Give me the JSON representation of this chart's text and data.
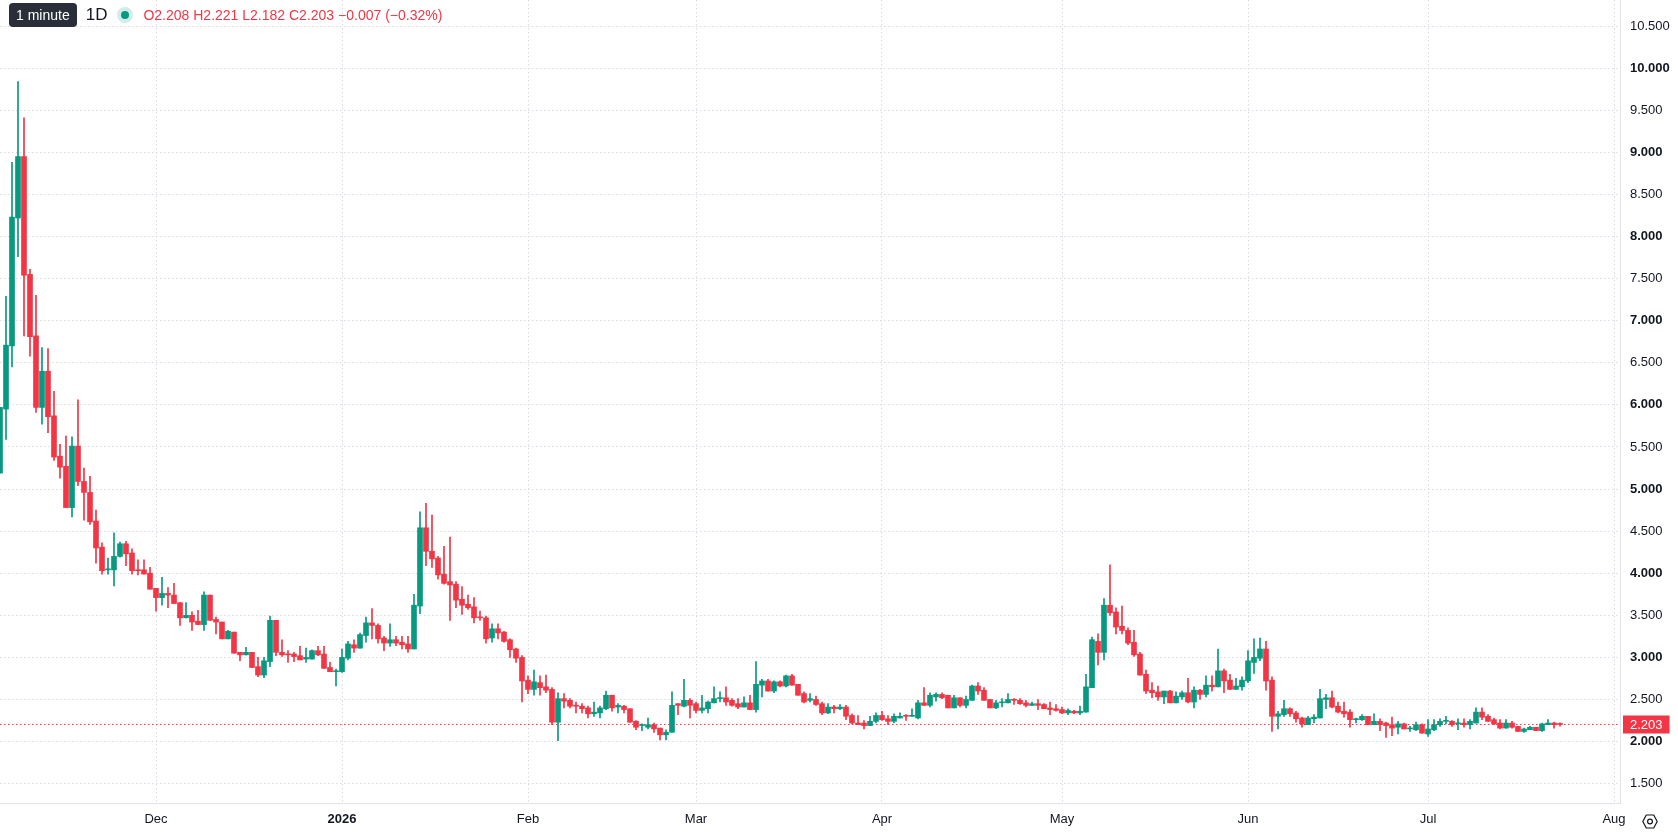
{
  "chart_data": {
    "type": "candlestick",
    "title": "1D",
    "subtitle": "O2.208 H2.221 L2.182 C2.203 −0.007 (−0.32%)",
    "annotations": [
      "1 minute"
    ],
    "x": [
      "2025-11-05",
      "2025-11-06",
      "2025-11-07",
      "2025-11-08",
      "2025-11-09",
      "2025-11-10",
      "2025-11-11",
      "2025-11-12",
      "2025-11-13",
      "2025-11-14",
      "2025-11-15",
      "2025-11-16",
      "2025-11-17",
      "2025-11-18",
      "2025-11-19",
      "2025-11-20",
      "2025-11-21",
      "2025-11-22",
      "2025-11-23",
      "2025-11-24",
      "2025-11-25",
      "2025-11-26",
      "2025-11-27",
      "2025-11-28",
      "2025-11-29",
      "2025-11-30",
      "2025-12-01",
      "2025-12-02",
      "2025-12-03",
      "2025-12-04",
      "2025-12-05",
      "2025-12-06",
      "2025-12-07",
      "2025-12-08",
      "2025-12-09",
      "2025-12-10",
      "2025-12-11",
      "2025-12-12",
      "2025-12-13",
      "2025-12-14",
      "2025-12-15",
      "2025-12-16",
      "2025-12-17",
      "2025-12-18",
      "2025-12-19",
      "2025-12-20",
      "2025-12-21",
      "2025-12-22",
      "2025-12-23",
      "2025-12-24",
      "2025-12-25",
      "2025-12-26",
      "2025-12-27",
      "2025-12-28",
      "2025-12-29",
      "2025-12-30",
      "2025-12-31",
      "2026-01-01",
      "2026-01-02",
      "2026-01-03",
      "2026-01-04",
      "2026-01-05",
      "2026-01-06",
      "2026-01-07",
      "2026-01-08",
      "2026-01-09",
      "2026-01-10",
      "2026-01-11",
      "2026-01-12",
      "2026-01-13",
      "2026-01-14",
      "2026-01-15",
      "2026-01-16",
      "2026-01-17",
      "2026-01-18",
      "2026-01-19",
      "2026-01-20",
      "2026-01-21",
      "2026-01-22",
      "2026-01-23",
      "2026-01-24",
      "2026-01-25",
      "2026-01-26",
      "2026-01-27",
      "2026-01-28",
      "2026-01-29",
      "2026-01-30",
      "2026-01-31",
      "2026-02-01",
      "2026-02-02",
      "2026-02-03",
      "2026-02-04",
      "2026-02-05",
      "2026-02-06",
      "2026-02-07",
      "2026-02-08",
      "2026-02-09",
      "2026-02-10",
      "2026-02-11",
      "2026-02-12",
      "2026-02-13",
      "2026-02-14",
      "2026-02-15",
      "2026-02-16",
      "2026-02-17",
      "2026-02-18",
      "2026-02-19",
      "2026-02-20",
      "2026-02-21",
      "2026-02-22",
      "2026-02-23",
      "2026-02-24",
      "2026-02-25",
      "2026-02-26",
      "2026-02-27",
      "2026-02-28",
      "2026-03-01",
      "2026-03-02",
      "2026-03-03",
      "2026-03-04",
      "2026-03-05",
      "2026-03-06",
      "2026-03-07",
      "2026-03-08",
      "2026-03-09",
      "2026-03-10",
      "2026-03-11",
      "2026-03-12",
      "2026-03-13",
      "2026-03-14",
      "2026-03-15",
      "2026-03-16",
      "2026-03-17",
      "2026-03-18",
      "2026-03-19",
      "2026-03-20",
      "2026-03-21",
      "2026-03-22",
      "2026-03-23",
      "2026-03-24",
      "2026-03-25",
      "2026-03-26",
      "2026-03-27",
      "2026-03-28",
      "2026-03-29",
      "2026-03-30",
      "2026-03-31",
      "2026-04-01",
      "2026-04-02",
      "2026-04-03",
      "2026-04-04",
      "2026-04-05",
      "2026-04-06",
      "2026-04-07",
      "2026-04-08",
      "2026-04-09",
      "2026-04-10",
      "2026-04-11",
      "2026-04-12",
      "2026-04-13",
      "2026-04-14",
      "2026-04-15",
      "2026-04-16",
      "2026-04-17",
      "2026-04-18",
      "2026-04-19",
      "2026-04-20",
      "2026-04-21",
      "2026-04-22",
      "2026-04-23",
      "2026-04-24",
      "2026-04-25",
      "2026-04-26",
      "2026-04-27",
      "2026-04-28",
      "2026-04-29",
      "2026-04-30",
      "2026-05-01",
      "2026-05-02",
      "2026-05-03",
      "2026-05-04",
      "2026-05-05",
      "2026-05-06",
      "2026-05-07",
      "2026-05-08",
      "2026-05-09",
      "2026-05-10",
      "2026-05-11",
      "2026-05-12",
      "2026-05-13",
      "2026-05-14",
      "2026-05-15",
      "2026-05-16",
      "2026-05-17",
      "2026-05-18",
      "2026-05-19",
      "2026-05-20",
      "2026-05-21",
      "2026-05-22",
      "2026-05-23",
      "2026-05-24",
      "2026-05-25",
      "2026-05-26",
      "2026-05-27",
      "2026-05-28",
      "2026-05-29",
      "2026-05-30",
      "2026-05-31",
      "2026-06-01",
      "2026-06-02",
      "2026-06-03",
      "2026-06-04",
      "2026-06-05",
      "2026-06-06",
      "2026-06-07",
      "2026-06-08",
      "2026-06-09",
      "2026-06-10",
      "2026-06-11",
      "2026-06-12",
      "2026-06-13",
      "2026-06-14",
      "2026-06-15",
      "2026-06-16",
      "2026-06-17",
      "2026-06-18",
      "2026-06-19",
      "2026-06-20",
      "2026-06-21",
      "2026-06-22",
      "2026-06-23",
      "2026-06-24",
      "2026-06-25",
      "2026-06-26",
      "2026-06-27",
      "2026-06-28",
      "2026-06-29",
      "2026-06-30",
      "2026-07-01",
      "2026-07-02",
      "2026-07-03",
      "2026-07-04",
      "2026-07-05",
      "2026-07-06",
      "2026-07-07",
      "2026-07-08",
      "2026-07-09",
      "2026-07-10",
      "2026-07-11",
      "2026-07-12",
      "2026-07-13",
      "2026-07-14",
      "2026-07-15",
      "2026-07-16",
      "2026-07-17",
      "2026-07-18",
      "2026-07-19",
      "2026-07-20",
      "2026-07-21",
      "2026-07-22",
      "2026-07-23"
    ],
    "ohlc": [
      [
        5.19,
        5.97,
        5.19,
        5.97
      ],
      [
        5.95,
        7.29,
        5.59,
        6.71
      ],
      [
        6.7,
        8.88,
        6.45,
        8.23
      ],
      [
        8.22,
        9.84,
        7.76,
        8.95
      ],
      [
        8.95,
        9.41,
        6.82,
        7.54
      ],
      [
        7.55,
        7.61,
        6.58,
        6.81
      ],
      [
        6.82,
        7.3,
        5.91,
        5.97
      ],
      [
        5.97,
        6.68,
        5.77,
        6.4
      ],
      [
        6.4,
        6.67,
        5.67,
        5.86
      ],
      [
        5.87,
        6.16,
        5.34,
        5.38
      ],
      [
        5.39,
        5.53,
        5.13,
        5.26
      ],
      [
        5.27,
        5.63,
        4.78,
        4.78
      ],
      [
        4.78,
        5.62,
        4.67,
        5.51
      ],
      [
        5.51,
        6.06,
        5.04,
        5.09
      ],
      [
        5.09,
        5.25,
        4.63,
        4.96
      ],
      [
        4.96,
        5.15,
        4.58,
        4.61
      ],
      [
        4.62,
        4.75,
        4.12,
        4.3
      ],
      [
        4.31,
        4.36,
        3.99,
        4.03
      ],
      [
        4.04,
        4.18,
        3.99,
        4.05
      ],
      [
        4.04,
        4.48,
        3.85,
        4.2
      ],
      [
        4.2,
        4.37,
        4.19,
        4.35
      ],
      [
        4.35,
        4.38,
        4.09,
        4.23
      ],
      [
        4.24,
        4.29,
        3.99,
        4.03
      ],
      [
        4.04,
        4.16,
        3.98,
        4.03
      ],
      [
        4.04,
        4.16,
        3.99,
        3.99
      ],
      [
        4.0,
        4.07,
        3.81,
        3.81
      ],
      [
        3.82,
        3.82,
        3.55,
        3.71
      ],
      [
        3.71,
        3.95,
        3.62,
        3.76
      ],
      [
        3.76,
        3.83,
        3.59,
        3.74
      ],
      [
        3.74,
        3.88,
        3.64,
        3.64
      ],
      [
        3.65,
        3.65,
        3.38,
        3.47
      ],
      [
        3.47,
        3.65,
        3.47,
        3.5
      ],
      [
        3.5,
        3.54,
        3.32,
        3.42
      ],
      [
        3.43,
        3.56,
        3.39,
        3.39
      ],
      [
        3.39,
        3.78,
        3.32,
        3.74
      ],
      [
        3.74,
        3.74,
        3.44,
        3.44
      ],
      [
        3.45,
        3.48,
        3.28,
        3.42
      ],
      [
        3.42,
        3.42,
        3.22,
        3.22
      ],
      [
        3.22,
        3.32,
        3.22,
        3.31
      ],
      [
        3.3,
        3.3,
        3.05,
        3.05
      ],
      [
        3.06,
        3.06,
        2.96,
        3.03
      ],
      [
        3.03,
        3.12,
        3.03,
        3.06
      ],
      [
        3.06,
        3.06,
        2.88,
        2.88
      ],
      [
        2.89,
        3.0,
        2.77,
        2.79
      ],
      [
        2.79,
        3.0,
        2.76,
        2.96
      ],
      [
        2.95,
        3.49,
        2.89,
        3.44
      ],
      [
        3.44,
        3.44,
        3.02,
        3.06
      ],
      [
        3.06,
        3.21,
        3.01,
        3.03
      ],
      [
        3.04,
        3.08,
        2.94,
        3.03
      ],
      [
        3.04,
        3.06,
        2.95,
        3.01
      ],
      [
        3.02,
        3.13,
        2.97,
        2.97
      ],
      [
        2.98,
        3.11,
        2.94,
        3.0
      ],
      [
        2.98,
        3.09,
        2.98,
        3.08
      ],
      [
        3.08,
        3.13,
        3.02,
        3.03
      ],
      [
        3.04,
        3.13,
        2.87,
        2.87
      ],
      [
        2.88,
        2.94,
        2.83,
        2.83
      ],
      [
        2.83,
        2.86,
        2.66,
        2.84
      ],
      [
        2.83,
        3.1,
        2.82,
        3.0
      ],
      [
        2.99,
        3.19,
        2.97,
        3.16
      ],
      [
        3.15,
        3.21,
        3.06,
        3.11
      ],
      [
        3.11,
        3.29,
        3.11,
        3.27
      ],
      [
        3.26,
        3.48,
        3.18,
        3.41
      ],
      [
        3.41,
        3.58,
        3.22,
        3.38
      ],
      [
        3.38,
        3.4,
        3.17,
        3.22
      ],
      [
        3.23,
        3.25,
        3.08,
        3.17
      ],
      [
        3.17,
        3.4,
        3.13,
        3.21
      ],
      [
        3.21,
        3.25,
        3.14,
        3.17
      ],
      [
        3.18,
        3.25,
        3.1,
        3.15
      ],
      [
        3.16,
        3.25,
        3.06,
        3.1
      ],
      [
        3.1,
        3.75,
        3.1,
        3.62
      ],
      [
        3.61,
        4.73,
        3.52,
        4.54
      ],
      [
        4.54,
        4.83,
        4.09,
        4.26
      ],
      [
        4.26,
        4.69,
        4.07,
        4.17
      ],
      [
        4.18,
        4.2,
        3.93,
        3.98
      ],
      [
        3.99,
        4.32,
        3.87,
        3.88
      ],
      [
        3.9,
        4.43,
        3.44,
        3.86
      ],
      [
        3.87,
        3.9,
        3.59,
        3.68
      ],
      [
        3.69,
        3.84,
        3.51,
        3.62
      ],
      [
        3.63,
        3.74,
        3.57,
        3.59
      ],
      [
        3.6,
        3.71,
        3.41,
        3.47
      ],
      [
        3.48,
        3.55,
        3.44,
        3.47
      ],
      [
        3.47,
        3.49,
        3.17,
        3.22
      ],
      [
        3.23,
        3.4,
        3.18,
        3.34
      ],
      [
        3.34,
        3.4,
        3.22,
        3.29
      ],
      [
        3.3,
        3.31,
        3.18,
        3.19
      ],
      [
        3.21,
        3.22,
        3.0,
        3.09
      ],
      [
        3.1,
        3.11,
        2.94,
        2.99
      ],
      [
        3.0,
        3.02,
        2.47,
        2.72
      ],
      [
        2.73,
        2.78,
        2.57,
        2.62
      ],
      [
        2.62,
        2.85,
        2.55,
        2.71
      ],
      [
        2.7,
        2.78,
        2.55,
        2.64
      ],
      [
        2.65,
        2.79,
        2.58,
        2.61
      ],
      [
        2.62,
        2.64,
        2.2,
        2.23
      ],
      [
        2.23,
        2.58,
        2.01,
        2.51
      ],
      [
        2.51,
        2.57,
        2.4,
        2.48
      ],
      [
        2.49,
        2.51,
        2.4,
        2.42
      ],
      [
        2.43,
        2.47,
        2.34,
        2.42
      ],
      [
        2.42,
        2.45,
        2.34,
        2.39
      ],
      [
        2.4,
        2.42,
        2.28,
        2.33
      ],
      [
        2.33,
        2.47,
        2.3,
        2.35
      ],
      [
        2.34,
        2.42,
        2.28,
        2.4
      ],
      [
        2.39,
        2.6,
        2.38,
        2.55
      ],
      [
        2.55,
        2.55,
        2.36,
        2.4
      ],
      [
        2.41,
        2.45,
        2.34,
        2.43
      ],
      [
        2.42,
        2.43,
        2.34,
        2.38
      ],
      [
        2.39,
        2.39,
        2.23,
        2.23
      ],
      [
        2.24,
        2.25,
        2.14,
        2.17
      ],
      [
        2.19,
        2.21,
        2.13,
        2.2
      ],
      [
        2.17,
        2.28,
        2.15,
        2.2
      ],
      [
        2.2,
        2.22,
        2.11,
        2.15
      ],
      [
        2.16,
        2.16,
        2.02,
        2.08
      ],
      [
        2.08,
        2.14,
        2.02,
        2.11
      ],
      [
        2.11,
        2.59,
        2.11,
        2.43
      ],
      [
        2.45,
        2.45,
        2.32,
        2.43
      ],
      [
        2.42,
        2.74,
        2.41,
        2.49
      ],
      [
        2.49,
        2.51,
        2.28,
        2.43
      ],
      [
        2.45,
        2.47,
        2.34,
        2.37
      ],
      [
        2.37,
        2.55,
        2.34,
        2.4
      ],
      [
        2.39,
        2.48,
        2.34,
        2.47
      ],
      [
        2.46,
        2.65,
        2.46,
        2.51
      ],
      [
        2.51,
        2.59,
        2.47,
        2.52
      ],
      [
        2.52,
        2.65,
        2.43,
        2.47
      ],
      [
        2.49,
        2.51,
        2.42,
        2.43
      ],
      [
        2.45,
        2.51,
        2.39,
        2.41
      ],
      [
        2.41,
        2.53,
        2.41,
        2.46
      ],
      [
        2.46,
        2.55,
        2.38,
        2.38
      ],
      [
        2.38,
        2.95,
        2.35,
        2.68
      ],
      [
        2.67,
        2.74,
        2.53,
        2.72
      ],
      [
        2.72,
        2.74,
        2.6,
        2.6
      ],
      [
        2.6,
        2.72,
        2.58,
        2.71
      ],
      [
        2.71,
        2.72,
        2.65,
        2.66
      ],
      [
        2.66,
        2.79,
        2.65,
        2.78
      ],
      [
        2.78,
        2.8,
        2.67,
        2.67
      ],
      [
        2.68,
        2.68,
        2.55,
        2.55
      ],
      [
        2.57,
        2.59,
        2.46,
        2.47
      ],
      [
        2.49,
        2.57,
        2.47,
        2.51
      ],
      [
        2.5,
        2.54,
        2.43,
        2.44
      ],
      [
        2.45,
        2.47,
        2.32,
        2.34
      ],
      [
        2.34,
        2.45,
        2.33,
        2.41
      ],
      [
        2.41,
        2.43,
        2.34,
        2.39
      ],
      [
        2.39,
        2.44,
        2.38,
        2.41
      ],
      [
        2.41,
        2.43,
        2.26,
        2.3
      ],
      [
        2.31,
        2.33,
        2.21,
        2.22
      ],
      [
        2.22,
        2.31,
        2.2,
        2.2
      ],
      [
        2.22,
        2.25,
        2.15,
        2.19
      ],
      [
        2.19,
        2.3,
        2.19,
        2.24
      ],
      [
        2.24,
        2.34,
        2.22,
        2.31
      ],
      [
        2.31,
        2.36,
        2.25,
        2.26
      ],
      [
        2.27,
        2.31,
        2.2,
        2.24
      ],
      [
        2.24,
        2.33,
        2.22,
        2.3
      ],
      [
        2.28,
        2.34,
        2.28,
        2.3
      ],
      [
        2.31,
        2.32,
        2.25,
        2.3
      ],
      [
        2.3,
        2.39,
        2.3,
        2.31
      ],
      [
        2.28,
        2.49,
        2.27,
        2.46
      ],
      [
        2.46,
        2.64,
        2.43,
        2.43
      ],
      [
        2.43,
        2.58,
        2.41,
        2.55
      ],
      [
        2.53,
        2.58,
        2.48,
        2.56
      ],
      [
        2.56,
        2.58,
        2.51,
        2.52
      ],
      [
        2.55,
        2.55,
        2.4,
        2.4
      ],
      [
        2.4,
        2.55,
        2.4,
        2.52
      ],
      [
        2.52,
        2.52,
        2.41,
        2.43
      ],
      [
        2.43,
        2.54,
        2.4,
        2.5
      ],
      [
        2.49,
        2.67,
        2.49,
        2.66
      ],
      [
        2.66,
        2.7,
        2.56,
        2.6
      ],
      [
        2.61,
        2.64,
        2.49,
        2.49
      ],
      [
        2.5,
        2.5,
        2.4,
        2.4
      ],
      [
        2.4,
        2.49,
        2.39,
        2.46
      ],
      [
        2.46,
        2.51,
        2.41,
        2.47
      ],
      [
        2.46,
        2.57,
        2.46,
        2.5
      ],
      [
        2.5,
        2.51,
        2.44,
        2.49
      ],
      [
        2.49,
        2.51,
        2.44,
        2.45
      ],
      [
        2.46,
        2.49,
        2.41,
        2.43
      ],
      [
        2.43,
        2.47,
        2.43,
        2.45
      ],
      [
        2.45,
        2.5,
        2.38,
        2.43
      ],
      [
        2.44,
        2.45,
        2.39,
        2.39
      ],
      [
        2.4,
        2.47,
        2.32,
        2.38
      ],
      [
        2.39,
        2.44,
        2.36,
        2.37
      ],
      [
        2.38,
        2.41,
        2.33,
        2.34
      ],
      [
        2.34,
        2.39,
        2.32,
        2.37
      ],
      [
        2.36,
        2.37,
        2.33,
        2.34
      ],
      [
        2.34,
        2.42,
        2.32,
        2.36
      ],
      [
        2.35,
        2.8,
        2.35,
        2.65
      ],
      [
        2.64,
        3.24,
        2.64,
        3.21
      ],
      [
        3.19,
        3.28,
        2.91,
        3.06
      ],
      [
        3.06,
        3.7,
        2.97,
        3.62
      ],
      [
        3.62,
        4.1,
        3.5,
        3.53
      ],
      [
        3.54,
        3.59,
        3.28,
        3.36
      ],
      [
        3.37,
        3.61,
        3.28,
        3.32
      ],
      [
        3.32,
        3.35,
        3.15,
        3.17
      ],
      [
        3.18,
        3.32,
        3.01,
        3.03
      ],
      [
        3.04,
        3.06,
        2.79,
        2.79
      ],
      [
        2.8,
        2.85,
        2.57,
        2.6
      ],
      [
        2.61,
        2.7,
        2.52,
        2.58
      ],
      [
        2.59,
        2.66,
        2.49,
        2.53
      ],
      [
        2.53,
        2.6,
        2.45,
        2.6
      ],
      [
        2.6,
        2.61,
        2.46,
        2.46
      ],
      [
        2.46,
        2.59,
        2.46,
        2.54
      ],
      [
        2.53,
        2.6,
        2.5,
        2.58
      ],
      [
        2.58,
        2.75,
        2.46,
        2.47
      ],
      [
        2.47,
        2.65,
        2.4,
        2.61
      ],
      [
        2.61,
        2.62,
        2.5,
        2.56
      ],
      [
        2.56,
        2.78,
        2.53,
        2.67
      ],
      [
        2.67,
        2.78,
        2.6,
        2.65
      ],
      [
        2.65,
        3.1,
        2.65,
        2.84
      ],
      [
        2.84,
        2.86,
        2.58,
        2.72
      ],
      [
        2.73,
        2.8,
        2.62,
        2.62
      ],
      [
        2.62,
        2.75,
        2.62,
        2.66
      ],
      [
        2.65,
        2.77,
        2.61,
        2.73
      ],
      [
        2.72,
        3.08,
        2.7,
        2.96
      ],
      [
        2.94,
        3.22,
        2.81,
        3.0
      ],
      [
        2.99,
        3.23,
        2.96,
        3.1
      ],
      [
        3.1,
        3.19,
        2.61,
        2.72
      ],
      [
        2.73,
        2.77,
        2.12,
        2.3
      ],
      [
        2.3,
        2.36,
        2.15,
        2.33
      ],
      [
        2.32,
        2.49,
        2.3,
        2.39
      ],
      [
        2.39,
        2.4,
        2.3,
        2.33
      ],
      [
        2.34,
        2.36,
        2.23,
        2.27
      ],
      [
        2.28,
        2.29,
        2.17,
        2.21
      ],
      [
        2.2,
        2.3,
        2.2,
        2.28
      ],
      [
        2.27,
        2.32,
        2.22,
        2.29
      ],
      [
        2.28,
        2.62,
        2.28,
        2.51
      ],
      [
        2.5,
        2.56,
        2.39,
        2.52
      ],
      [
        2.52,
        2.6,
        2.4,
        2.41
      ],
      [
        2.42,
        2.47,
        2.34,
        2.35
      ],
      [
        2.36,
        2.47,
        2.29,
        2.33
      ],
      [
        2.35,
        2.38,
        2.17,
        2.26
      ],
      [
        2.26,
        2.28,
        2.22,
        2.27
      ],
      [
        2.26,
        2.32,
        2.25,
        2.3
      ],
      [
        2.3,
        2.3,
        2.2,
        2.2
      ],
      [
        2.2,
        2.33,
        2.2,
        2.24
      ],
      [
        2.24,
        2.27,
        2.13,
        2.2
      ],
      [
        2.22,
        2.23,
        2.05,
        2.19
      ],
      [
        2.2,
        2.29,
        2.07,
        2.16
      ],
      [
        2.17,
        2.24,
        2.09,
        2.21
      ],
      [
        2.21,
        2.22,
        2.15,
        2.15
      ],
      [
        2.15,
        2.18,
        2.12,
        2.16
      ],
      [
        2.14,
        2.23,
        2.13,
        2.2
      ],
      [
        2.2,
        2.21,
        2.1,
        2.1
      ],
      [
        2.09,
        2.26,
        2.06,
        2.15
      ],
      [
        2.14,
        2.26,
        2.13,
        2.2
      ],
      [
        2.2,
        2.27,
        2.18,
        2.24
      ],
      [
        2.24,
        2.3,
        2.21,
        2.25
      ],
      [
        2.24,
        2.25,
        2.18,
        2.2
      ],
      [
        2.21,
        2.27,
        2.14,
        2.22
      ],
      [
        2.22,
        2.27,
        2.17,
        2.2
      ],
      [
        2.2,
        2.26,
        2.15,
        2.24
      ],
      [
        2.22,
        2.4,
        2.22,
        2.35
      ],
      [
        2.35,
        2.4,
        2.26,
        2.29
      ],
      [
        2.3,
        2.32,
        2.24,
        2.24
      ],
      [
        2.26,
        2.28,
        2.2,
        2.21
      ],
      [
        2.22,
        2.26,
        2.15,
        2.16
      ],
      [
        2.16,
        2.26,
        2.16,
        2.22
      ],
      [
        2.22,
        2.24,
        2.16,
        2.17
      ],
      [
        2.18,
        2.18,
        2.12,
        2.12
      ],
      [
        2.12,
        2.16,
        2.11,
        2.15
      ],
      [
        2.14,
        2.18,
        2.14,
        2.17
      ],
      [
        2.17,
        2.17,
        2.13,
        2.13
      ],
      [
        2.13,
        2.22,
        2.12,
        2.21
      ],
      [
        2.2,
        2.26,
        2.2,
        2.22
      ],
      [
        2.22,
        2.23,
        2.16,
        2.2
      ],
      [
        2.208,
        2.221,
        2.182,
        2.203
      ]
    ],
    "colors": [
      "#089981",
      "#089981",
      "#089981",
      "#089981",
      "#f23645",
      "#f23645",
      "#f23645",
      "#089981",
      "#f23645",
      "#f23645",
      "#f23645",
      "#f23645",
      "#089981",
      "#f23645",
      "#f23645",
      "#f23645",
      "#f23645",
      "#f23645",
      "#089981",
      "#089981",
      "#089981",
      "#f23645",
      "#f23645",
      "#f23645",
      "#f23645",
      "#f23645",
      "#f23645",
      "#089981",
      "#f23645",
      "#f23645",
      "#f23645",
      "#089981",
      "#f23645",
      "#f23645",
      "#089981",
      "#f23645",
      "#f23645",
      "#f23645",
      "#089981",
      "#f23645",
      "#f23645",
      "#089981",
      "#f23645",
      "#f23645",
      "#089981",
      "#089981",
      "#f23645",
      "#f23645",
      "#f23645",
      "#f23645",
      "#f23645",
      "#089981",
      "#089981",
      "#f23645",
      "#f23645",
      "#f23645",
      "#089981",
      "#089981",
      "#089981",
      "#f23645",
      "#089981",
      "#089981",
      "#f23645",
      "#f23645",
      "#f23645",
      "#089981",
      "#f23645",
      "#f23645",
      "#f23645",
      "#089981",
      "#089981",
      "#f23645",
      "#f23645",
      "#f23645",
      "#f23645",
      "#f23645",
      "#f23645",
      "#f23645",
      "#f23645",
      "#f23645",
      "#f23645",
      "#f23645",
      "#089981",
      "#f23645",
      "#f23645",
      "#f23645",
      "#f23645",
      "#f23645",
      "#f23645",
      "#089981",
      "#f23645",
      "#f23645",
      "#f23645",
      "#089981",
      "#f23645",
      "#f23645",
      "#f23645",
      "#f23645",
      "#f23645",
      "#089981",
      "#089981",
      "#089981",
      "#f23645",
      "#089981",
      "#f23645",
      "#f23645",
      "#f23645",
      "#089981",
      "#089981",
      "#f23645",
      "#f23645",
      "#089981",
      "#089981",
      "#f23645",
      "#089981",
      "#f23645",
      "#f23645",
      "#089981",
      "#089981",
      "#089981",
      "#089981",
      "#f23645",
      "#f23645",
      "#f23645",
      "#089981",
      "#f23645",
      "#089981",
      "#089981",
      "#f23645",
      "#089981",
      "#f23645",
      "#089981",
      "#f23645",
      "#f23645",
      "#f23645",
      "#089981",
      "#f23645",
      "#f23645",
      "#089981",
      "#f23645",
      "#089981",
      "#f23645",
      "#f23645",
      "#f23645",
      "#f23645",
      "#089981",
      "#089981",
      "#f23645",
      "#f23645",
      "#089981",
      "#089981",
      "#f23645",
      "#089981",
      "#089981",
      "#f23645",
      "#089981",
      "#089981",
      "#f23645",
      "#f23645",
      "#089981",
      "#f23645",
      "#089981",
      "#089981",
      "#f23645",
      "#f23645",
      "#f23645",
      "#089981",
      "#089981",
      "#089981",
      "#f23645",
      "#f23645",
      "#f23645",
      "#089981",
      "#f23645",
      "#f23645",
      "#f23645",
      "#f23645",
      "#f23645",
      "#089981",
      "#f23645",
      "#089981",
      "#089981",
      "#089981",
      "#f23645",
      "#089981",
      "#f23645",
      "#f23645",
      "#f23645",
      "#f23645",
      "#f23645",
      "#f23645",
      "#f23645",
      "#f23645",
      "#f23645",
      "#089981",
      "#f23645",
      "#089981",
      "#089981",
      "#f23645",
      "#089981",
      "#f23645",
      "#089981",
      "#f23645",
      "#089981",
      "#f23645",
      "#f23645",
      "#089981",
      "#089981",
      "#089981",
      "#089981",
      "#089981",
      "#f23645",
      "#f23645",
      "#089981",
      "#089981",
      "#f23645",
      "#f23645",
      "#f23645",
      "#089981",
      "#089981",
      "#089981",
      "#089981",
      "#f23645",
      "#f23645",
      "#f23645",
      "#f23645",
      "#089981",
      "#089981",
      "#f23645",
      "#089981",
      "#f23645",
      "#f23645",
      "#f23645",
      "#089981",
      "#f23645",
      "#089981",
      "#089981",
      "#f23645",
      "#089981",
      "#089981",
      "#089981",
      "#089981",
      "#f23645",
      "#089981",
      "#f23645",
      "#089981",
      "#089981",
      "#f23645",
      "#f23645",
      "#f23645",
      "#f23645",
      "#089981",
      "#f23645",
      "#f23645",
      "#089981",
      "#089981",
      "#f23645",
      "#089981",
      "#089981",
      "#f23645",
      "#f23645"
    ],
    "xlim": [
      "2025-11-05",
      "2026-08-02"
    ],
    "xticks": [
      {
        "value": "2025-12-01",
        "label": "Dec"
      },
      {
        "value": "2026-01-01",
        "label": "2026"
      },
      {
        "value": "2026-02-01",
        "label": "Feb"
      },
      {
        "value": "2026-03-01",
        "label": "Mar"
      },
      {
        "value": "2026-04-01",
        "label": "Apr"
      },
      {
        "value": "2026-05-01",
        "label": "May"
      },
      {
        "value": "2026-06-01",
        "label": "Jun"
      },
      {
        "value": "2026-07-01",
        "label": "Jul"
      },
      {
        "value": "2026-08-01",
        "label": "Aug"
      }
    ],
    "ylim": [
      1.27,
      10.81
    ],
    "yticks": [
      {
        "value": 1.5,
        "label": "1.500"
      },
      {
        "value": 2,
        "label": "2.000"
      },
      {
        "value": 2.5,
        "label": "2.500"
      },
      {
        "value": 3,
        "label": "3.000"
      },
      {
        "value": 3.5,
        "label": "3.500"
      },
      {
        "value": 4,
        "label": "4.000"
      },
      {
        "value": 4.5,
        "label": "4.500"
      },
      {
        "value": 5,
        "label": "5.000"
      },
      {
        "value": 5.5,
        "label": "5.500"
      },
      {
        "value": 6,
        "label": "6.000"
      },
      {
        "value": 6.5,
        "label": "6.500"
      },
      {
        "value": 7,
        "label": "7.000"
      },
      {
        "value": 7.5,
        "label": "7.500"
      },
      {
        "value": 8,
        "label": "8.000"
      },
      {
        "value": 8.5,
        "label": "8.500"
      },
      {
        "value": 9,
        "label": "9.000"
      },
      {
        "value": 9.5,
        "label": "9.500"
      },
      {
        "value": 10,
        "label": "10.000"
      },
      {
        "value": 10.5,
        "label": "10.500"
      }
    ],
    "grid": true,
    "ref_lines": [
      {
        "axis": "y",
        "value": 2.203,
        "label": "2.203",
        "color": "#f23645",
        "line_style": "dotted"
      }
    ]
  }
}
